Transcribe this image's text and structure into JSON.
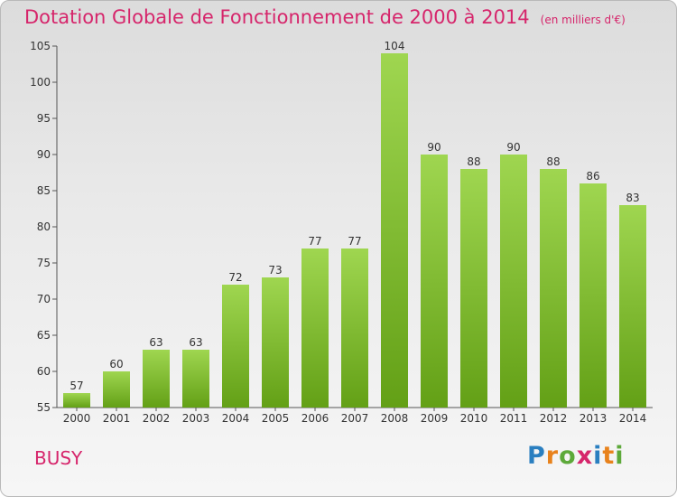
{
  "header": {
    "title": "Dotation Globale de Fonctionnement de 2000 à 2014",
    "unit": "(en milliers d'€)"
  },
  "footer": {
    "commune": "BUSY",
    "logo_text": "Proxiti"
  },
  "colors": {
    "title": "#d6256b",
    "bar_top": "#9fd650",
    "bar_bottom": "#63a016",
    "axis": "#555555"
  },
  "chart_data": {
    "type": "bar",
    "title": "Dotation Globale de Fonctionnement de 2000 à 2014",
    "xlabel": "",
    "ylabel": "",
    "categories": [
      "2000",
      "2001",
      "2002",
      "2003",
      "2004",
      "2005",
      "2006",
      "2007",
      "2008",
      "2009",
      "2010",
      "2011",
      "2012",
      "2013",
      "2014"
    ],
    "values": [
      57,
      60,
      63,
      63,
      72,
      73,
      77,
      77,
      104,
      90,
      88,
      90,
      88,
      86,
      83
    ],
    "ylim": [
      55,
      105
    ],
    "yticks": [
      55,
      60,
      65,
      70,
      75,
      80,
      85,
      90,
      95,
      100,
      105
    ],
    "grid": false
  }
}
